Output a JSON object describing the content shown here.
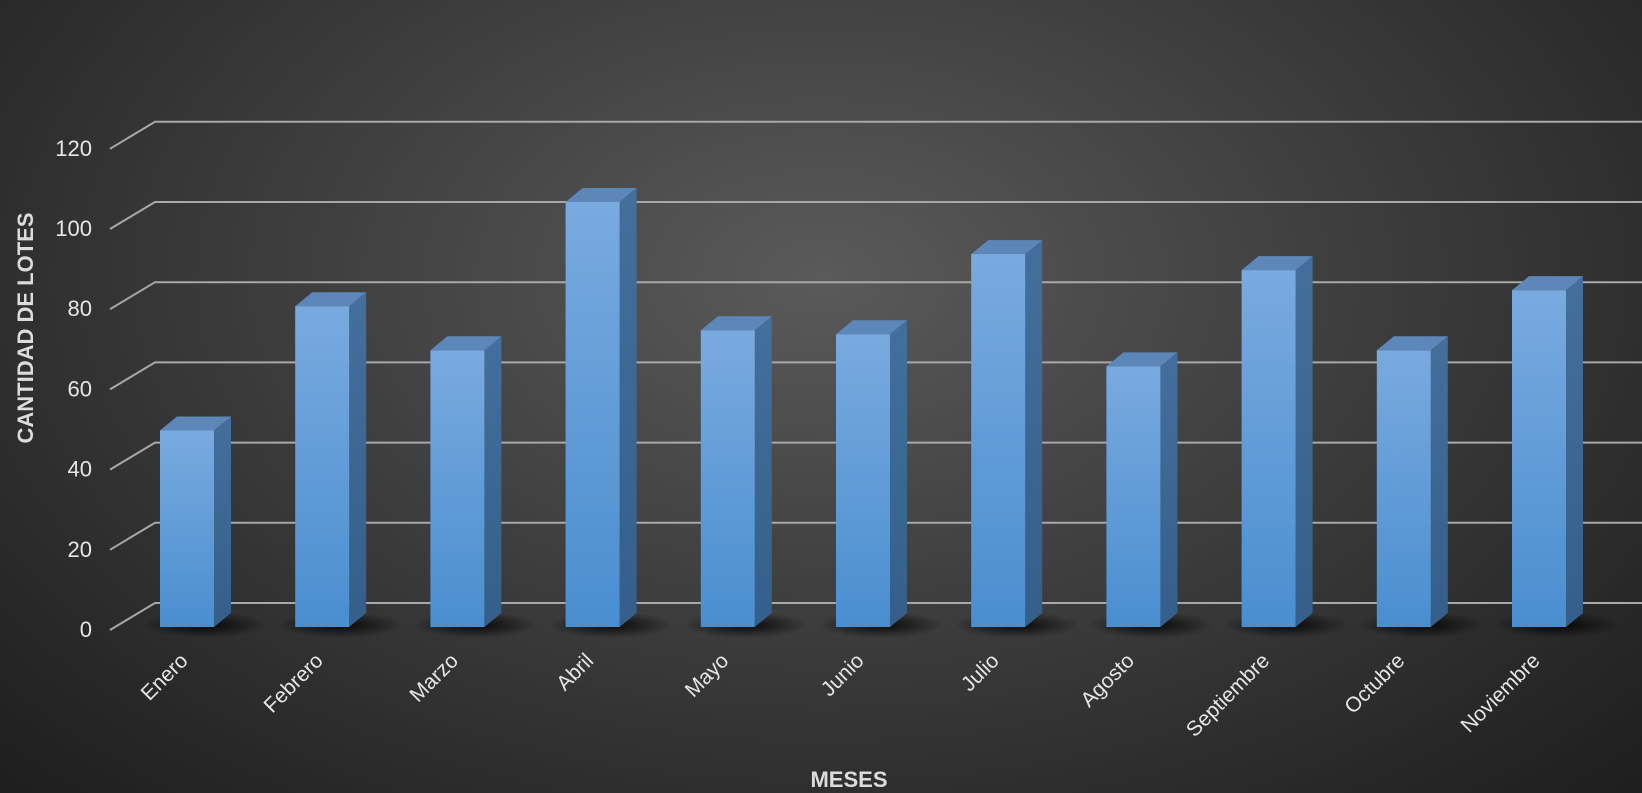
{
  "chart_data": {
    "type": "bar",
    "title": "",
    "xlabel": "MESES",
    "ylabel": "CANTIDAD DE LOTES",
    "ylim": [
      0,
      120
    ],
    "yticks": [
      0,
      20,
      40,
      60,
      80,
      100,
      120
    ],
    "categories": [
      "Enero",
      "Febrero",
      "Marzo",
      "Abril",
      "Mayo",
      "Junio",
      "Julio",
      "Agosto",
      "Septiembre",
      "Octubre",
      "Noviembre"
    ],
    "values": [
      49,
      80,
      69,
      106,
      74,
      73,
      93,
      65,
      89,
      69,
      84
    ],
    "grid": true,
    "legend": "none",
    "style": "3d-column",
    "colors": {
      "bar_front_top": "#79aadf",
      "bar_front_bottom": "#4a8ed0",
      "bar_side": "#3a6a9a",
      "bar_top": "#5c87b8",
      "gridline": "#a8a8a8",
      "text": "#e6e6e6"
    }
  }
}
